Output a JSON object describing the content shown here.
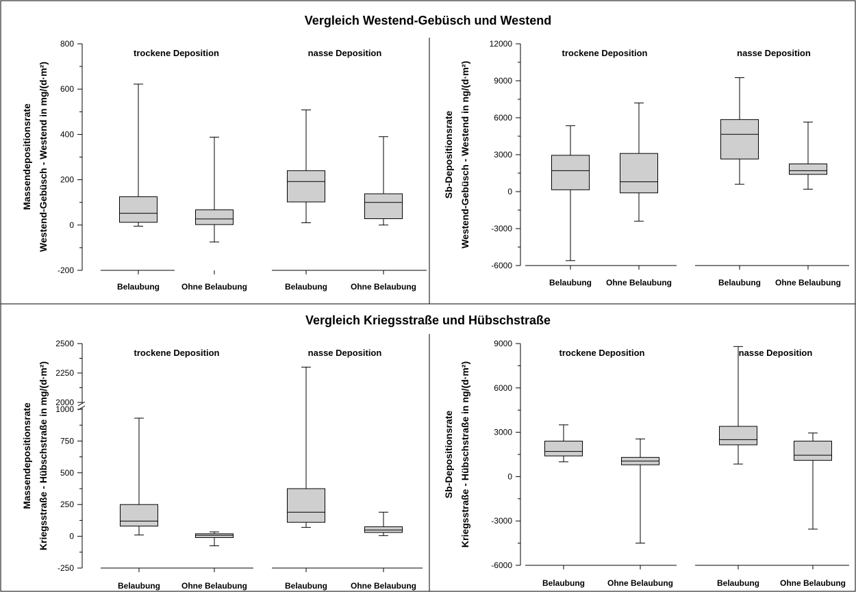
{
  "sections": [
    {
      "title": "Vergleich Westend-Gebüsch und Westend"
    },
    {
      "title": "Vergleich Kriegsstraße und Hübschstraße"
    }
  ],
  "chart_data": [
    {
      "type": "box",
      "ylabel_line1": "Massendepositionsrate",
      "ylabel_line2": "Westend-Gebüsch - Westend in mg/(d·m²)",
      "ylim": [
        -200,
        800
      ],
      "yticks": [
        -200,
        0,
        200,
        400,
        600,
        800
      ],
      "ytick_labels": [
        "-200",
        "0",
        "200",
        "400",
        "600",
        "800"
      ],
      "groups": [
        {
          "label": "trockene Deposition",
          "boxes": [
            {
              "category": "Belaubung",
              "min": -5,
              "q1": 12,
              "median": 52,
              "q3": 125,
              "max": 622
            },
            {
              "category": "Ohne Belaubung",
              "min": -75,
              "q1": 2,
              "median": 27,
              "q3": 67,
              "max": 388
            }
          ]
        },
        {
          "label": "nasse Deposition",
          "boxes": [
            {
              "category": "Belaubung",
              "min": 10,
              "q1": 102,
              "median": 192,
              "q3": 240,
              "max": 508
            },
            {
              "category": "Ohne Belaubung",
              "min": 0,
              "q1": 28,
              "median": 100,
              "q3": 138,
              "max": 390
            }
          ]
        }
      ]
    },
    {
      "type": "box",
      "ylabel_line1": "Sb-Depositionsrate",
      "ylabel_line2": "Westend-Gebüsch - Westend in ng/(d·m²)",
      "ylim": [
        -6000,
        12000
      ],
      "yticks": [
        -6000,
        -3000,
        0,
        3000,
        6000,
        9000,
        12000
      ],
      "ytick_labels": [
        "-6000",
        "-3000",
        "0",
        "3000",
        "6000",
        "9000",
        "12000"
      ],
      "groups": [
        {
          "label": "trockene Deposition",
          "boxes": [
            {
              "category": "Belaubung",
              "min": -5600,
              "q1": 150,
              "median": 1700,
              "q3": 2950,
              "max": 5350
            },
            {
              "category": "Ohne Belaubung",
              "min": -2400,
              "q1": -100,
              "median": 800,
              "q3": 3100,
              "max": 7200
            }
          ]
        },
        {
          "label": "nasse Deposition",
          "boxes": [
            {
              "category": "Belaubung",
              "min": 600,
              "q1": 2650,
              "median": 4650,
              "q3": 5850,
              "max": 9250
            },
            {
              "category": "Ohne Belaubung",
              "min": 200,
              "q1": 1400,
              "median": 1700,
              "q3": 2250,
              "max": 5650
            }
          ]
        }
      ]
    },
    {
      "type": "box",
      "ylabel_line1": "Massendepositionsrate",
      "ylabel_line2": "Kriegsstraße - Hübschstraße in mg/(d·m²)",
      "ylim": [
        -250,
        2500
      ],
      "axis_break": [
        1000,
        2000
      ],
      "yticks": [
        -250,
        0,
        250,
        500,
        750,
        1000,
        2000,
        2250,
        2500
      ],
      "ytick_labels": [
        "-250",
        "0",
        "250",
        "500",
        "750",
        "1000",
        "2000",
        "2250",
        "2500"
      ],
      "groups": [
        {
          "label": "trockene Deposition",
          "boxes": [
            {
              "category": "Belaubung",
              "min": 10,
              "q1": 80,
              "median": 120,
              "q3": 250,
              "max": 930
            },
            {
              "category": "Ohne Belaubung",
              "min": -75,
              "q1": -10,
              "median": 8,
              "q3": 20,
              "max": 35
            }
          ]
        },
        {
          "label": "nasse Deposition",
          "boxes": [
            {
              "category": "Belaubung",
              "min": 70,
              "q1": 110,
              "median": 190,
              "q3": 375,
              "max": 2300
            },
            {
              "category": "Ohne Belaubung",
              "min": 5,
              "q1": 30,
              "median": 50,
              "q3": 75,
              "max": 190
            }
          ]
        }
      ]
    },
    {
      "type": "box",
      "ylabel_line1": "Sb-Depositionsrate",
      "ylabel_line2": "Kriegsstraße - Hübschstraße in ng/(d·m²)",
      "ylim": [
        -6000,
        9000
      ],
      "yticks": [
        -6000,
        -3000,
        0,
        3000,
        6000,
        9000
      ],
      "ytick_labels": [
        "-6000",
        "-3000",
        "0",
        "3000",
        "6000",
        "9000"
      ],
      "groups": [
        {
          "label": "trockene Deposition",
          "boxes": [
            {
              "category": "Belaubung",
              "min": 1000,
              "q1": 1400,
              "median": 1700,
              "q3": 2400,
              "max": 3500
            },
            {
              "category": "Ohne Belaubung",
              "min": -4500,
              "q1": 800,
              "median": 1050,
              "q3": 1300,
              "max": 2550
            }
          ]
        },
        {
          "label": "nasse Deposition",
          "boxes": [
            {
              "category": "Belaubung",
              "min": 850,
              "q1": 2150,
              "median": 2500,
              "q3": 3400,
              "max": 8800
            },
            {
              "category": "Ohne Belaubung",
              "min": -3550,
              "q1": 1100,
              "median": 1450,
              "q3": 2400,
              "max": 2950
            }
          ]
        }
      ]
    }
  ]
}
